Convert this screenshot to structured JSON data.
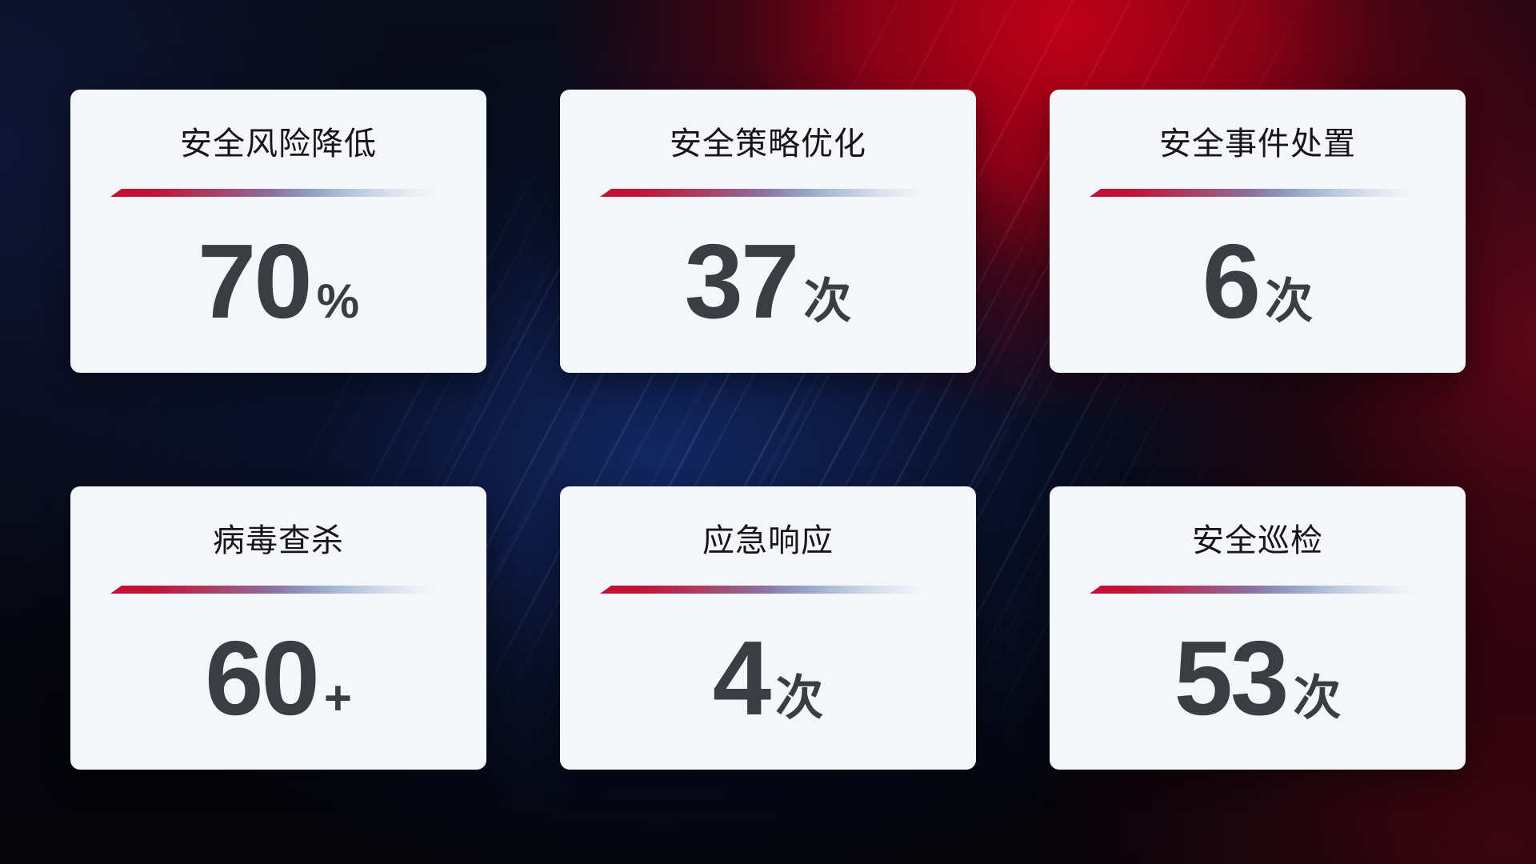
{
  "background": {
    "base_color": "#05060d",
    "navy_glow_color": "#103a7a",
    "red_glow_color": "#c00019",
    "maroon_corner_color": "#420610"
  },
  "card_style": {
    "background_color": "#f5f6fa",
    "title_color": "#15151b",
    "value_color": "#3b3d43",
    "divider_start_color": "#c50e35",
    "divider_mid_color": "#8a70a0",
    "divider_end_color": "#b7c5dc"
  },
  "cards": [
    {
      "title": "安全风险降低",
      "value": "70",
      "unit": "%"
    },
    {
      "title": "安全策略优化",
      "value": "37",
      "unit": "次"
    },
    {
      "title": "安全事件处置",
      "value": "6",
      "unit": "次"
    },
    {
      "title": "病毒查杀",
      "value": "60",
      "unit": "+"
    },
    {
      "title": "应急响应",
      "value": "4",
      "ununit_note": "",
      "unit": "次"
    },
    {
      "title": "安全巡检",
      "value": "53",
      "unit": "次"
    }
  ]
}
